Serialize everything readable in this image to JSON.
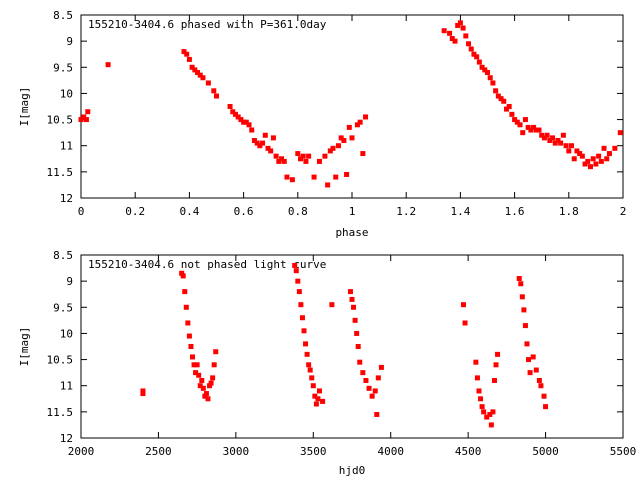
{
  "chart_data": [
    {
      "type": "scatter",
      "title": "155210-3404.6 phased with P=361.0day",
      "xlabel": "phase",
      "ylabel": "I[mag]",
      "xlim": [
        0,
        2
      ],
      "ylim": [
        12,
        8.5
      ],
      "y_inverted": true,
      "xticks": [
        "0",
        "0.2",
        "0.4",
        "0.6",
        "0.8",
        "1",
        "1.2",
        "1.4",
        "1.6",
        "1.8",
        "2"
      ],
      "yticks": [
        "8.5",
        "9",
        "9.5",
        "10",
        "10.5",
        "11",
        "11.5",
        "12"
      ],
      "marker_color": "#ff0000",
      "series": [
        {
          "x": [
            0.0,
            0.01,
            0.02,
            0.025,
            0.1,
            0.38,
            0.39,
            0.4,
            0.41,
            0.42,
            0.43,
            0.44,
            0.45,
            0.47,
            0.49,
            0.5,
            0.55,
            0.56,
            0.57,
            0.58,
            0.59,
            0.6,
            0.61,
            0.62,
            0.63,
            0.64,
            0.65,
            0.66,
            0.67,
            0.68,
            0.69,
            0.7,
            0.71,
            0.72,
            0.73,
            0.74,
            0.75,
            0.76,
            0.78,
            0.8,
            0.81,
            0.82,
            0.83,
            0.84,
            0.86,
            0.88,
            0.9,
            0.91,
            0.92,
            0.93,
            0.94,
            0.95,
            0.96,
            0.97,
            0.98,
            0.99,
            1.0,
            1.02,
            1.03,
            1.04,
            1.05,
            1.34,
            1.36,
            1.37,
            1.38,
            1.39,
            1.4,
            1.41,
            1.42,
            1.43,
            1.44,
            1.45,
            1.46,
            1.47,
            1.48,
            1.49,
            1.5,
            1.51,
            1.52,
            1.53,
            1.54,
            1.55,
            1.56,
            1.57,
            1.58,
            1.59,
            1.6,
            1.61,
            1.62,
            1.63,
            1.64,
            1.65,
            1.66,
            1.67,
            1.68,
            1.69,
            1.7,
            1.71,
            1.72,
            1.73,
            1.74,
            1.75,
            1.76,
            1.77,
            1.78,
            1.79,
            1.8,
            1.81,
            1.82,
            1.83,
            1.84,
            1.85,
            1.86,
            1.87,
            1.88,
            1.89,
            1.9,
            1.91,
            1.92,
            1.93,
            1.94,
            1.95,
            1.97,
            1.99
          ],
          "y": [
            10.5,
            10.45,
            10.5,
            10.35,
            9.45,
            9.2,
            9.25,
            9.35,
            9.5,
            9.55,
            9.6,
            9.65,
            9.7,
            9.8,
            9.95,
            10.05,
            10.25,
            10.35,
            10.4,
            10.45,
            10.5,
            10.55,
            10.55,
            10.6,
            10.7,
            10.9,
            10.95,
            11.0,
            10.95,
            10.8,
            11.05,
            11.1,
            10.85,
            11.2,
            11.3,
            11.25,
            11.3,
            11.6,
            11.65,
            11.15,
            11.25,
            11.2,
            11.3,
            11.2,
            11.6,
            11.3,
            11.2,
            11.75,
            11.1,
            11.05,
            11.6,
            11.0,
            10.85,
            10.9,
            11.55,
            10.65,
            10.85,
            10.6,
            10.55,
            11.15,
            10.45,
            8.8,
            8.85,
            8.95,
            9.0,
            8.7,
            8.65,
            8.75,
            8.9,
            9.05,
            9.15,
            9.25,
            9.3,
            9.4,
            9.5,
            9.55,
            9.6,
            9.7,
            9.8,
            9.95,
            10.05,
            10.1,
            10.15,
            10.3,
            10.25,
            10.4,
            10.5,
            10.55,
            10.6,
            10.75,
            10.5,
            10.65,
            10.7,
            10.65,
            10.7,
            10.7,
            10.8,
            10.85,
            10.8,
            10.9,
            10.85,
            10.95,
            10.9,
            10.95,
            10.8,
            11.0,
            11.1,
            11.0,
            11.25,
            11.1,
            11.15,
            11.2,
            11.35,
            11.3,
            11.4,
            11.25,
            11.35,
            11.2,
            11.3,
            11.05,
            11.25,
            11.15,
            11.05,
            10.75
          ]
        }
      ]
    },
    {
      "type": "scatter",
      "title": "155210-3404.6 not phased light curve",
      "xlabel": "hjd0",
      "ylabel": "I[mag]",
      "xlim": [
        2000,
        5500
      ],
      "ylim": [
        12,
        8.5
      ],
      "y_inverted": true,
      "xticks": [
        "2000",
        "2500",
        "3000",
        "3500",
        "4000",
        "4500",
        "5000",
        "5500"
      ],
      "yticks": [
        "8.5",
        "9",
        "9.5",
        "10",
        "10.5",
        "11",
        "11.5",
        "12"
      ],
      "marker_color": "#ff0000",
      "series": [
        {
          "x": [
            2400,
            2400,
            2650,
            2660,
            2670,
            2680,
            2690,
            2700,
            2710,
            2720,
            2730,
            2740,
            2750,
            2760,
            2770,
            2780,
            2790,
            2800,
            2810,
            2820,
            2830,
            2840,
            2850,
            2860,
            2870,
            3380,
            3390,
            3400,
            3410,
            3420,
            3430,
            3440,
            3450,
            3460,
            3470,
            3480,
            3490,
            3500,
            3510,
            3520,
            3530,
            3540,
            3560,
            3620,
            3740,
            3750,
            3760,
            3770,
            3780,
            3790,
            3800,
            3820,
            3840,
            3860,
            3880,
            3900,
            3910,
            3920,
            3940,
            4470,
            4480,
            4550,
            4560,
            4570,
            4580,
            4590,
            4600,
            4620,
            4640,
            4650,
            4660,
            4670,
            4680,
            4690,
            4830,
            4840,
            4850,
            4860,
            4870,
            4880,
            4890,
            4900,
            4920,
            4940,
            4960,
            4970,
            4990,
            5000
          ],
          "y": [
            11.1,
            11.15,
            8.85,
            8.9,
            9.2,
            9.5,
            9.8,
            10.05,
            10.25,
            10.45,
            10.6,
            10.75,
            10.6,
            10.8,
            11.0,
            10.9,
            11.05,
            11.2,
            11.15,
            11.25,
            11.0,
            10.95,
            10.85,
            10.6,
            10.35,
            8.7,
            8.8,
            9.0,
            9.2,
            9.45,
            9.7,
            9.95,
            10.2,
            10.4,
            10.6,
            10.7,
            10.85,
            11.0,
            11.2,
            11.35,
            11.25,
            11.1,
            11.3,
            9.45,
            9.2,
            9.35,
            9.5,
            9.75,
            10.0,
            10.25,
            10.55,
            10.75,
            10.9,
            11.05,
            11.2,
            11.1,
            11.55,
            10.85,
            10.65,
            9.45,
            9.8,
            10.55,
            10.85,
            11.1,
            11.25,
            11.4,
            11.5,
            11.6,
            11.55,
            11.75,
            11.5,
            10.9,
            10.6,
            10.4,
            8.95,
            9.05,
            9.3,
            9.55,
            9.85,
            10.2,
            10.5,
            10.75,
            10.45,
            10.7,
            10.9,
            11.0,
            11.2,
            11.4
          ]
        }
      ]
    }
  ]
}
